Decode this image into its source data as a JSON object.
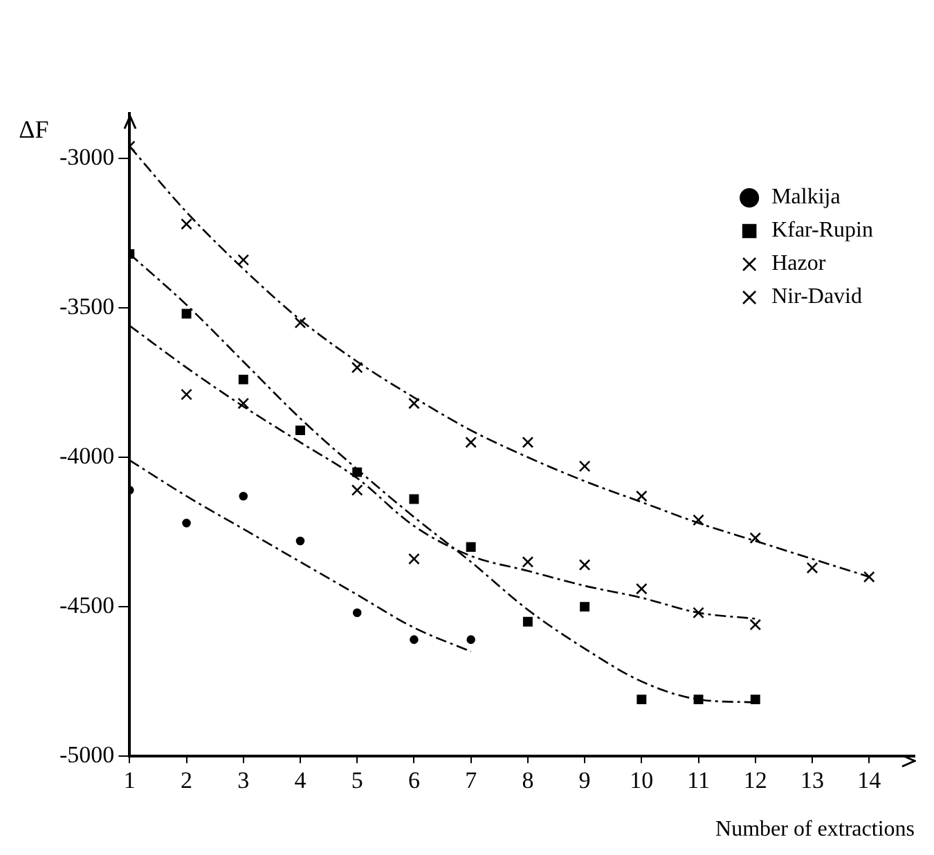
{
  "chart_data": {
    "type": "scatter",
    "ylabel": "ΔF",
    "xlabel": "Number of extractions",
    "xlim": [
      1,
      14.8
    ],
    "xticks": [
      1,
      2,
      3,
      4,
      5,
      6,
      7,
      8,
      9,
      10,
      11,
      12,
      13,
      14
    ],
    "ylim": [
      -5000,
      -2850
    ],
    "yticks": [
      -5000,
      -4500,
      -4000,
      -3500,
      -3000
    ],
    "legend": "top right",
    "series": [
      {
        "name": "Malkija",
        "type": "scatter",
        "marker": "circle",
        "color": "#000000",
        "x": [
          1,
          2,
          3,
          4,
          5,
          6,
          7
        ],
        "values": [
          -4110,
          -4220,
          -4130,
          -4280,
          -4520,
          -4610,
          -4610
        ]
      },
      {
        "name": "Kfar-Rupin",
        "type": "scatter",
        "marker": "square",
        "color": "#000000",
        "x": [
          1,
          2,
          3,
          4,
          5,
          6,
          7,
          8,
          9,
          10,
          11,
          12
        ],
        "values": [
          -3320,
          -3520,
          -3740,
          -3910,
          -4050,
          -4140,
          -4300,
          -4550,
          -4500,
          -4810,
          -4810,
          -4810
        ]
      },
      {
        "name": "Hazor",
        "type": "scatter",
        "marker": "cross",
        "color": "#000000",
        "x": [
          2,
          3,
          5,
          6,
          8,
          9,
          10,
          11,
          12
        ],
        "values": [
          -3790,
          -3820,
          -4110,
          -4340,
          -4350,
          -4360,
          -4440,
          -4520,
          -4560
        ]
      },
      {
        "name": "Nir-David",
        "type": "scatter",
        "marker": "cross",
        "color": "#000000",
        "x": [
          1,
          2,
          3,
          4,
          5,
          6,
          7,
          8,
          9,
          10,
          11,
          12,
          13,
          14
        ],
        "values": [
          -2960,
          -3220,
          -3340,
          -3550,
          -3700,
          -3820,
          -3950,
          -3950,
          -4030,
          -4130,
          -4210,
          -4270,
          -4370,
          -4400
        ]
      },
      {
        "type": "line",
        "marker": "none",
        "line_style": "dashed",
        "color": "#000000",
        "x": [
          1,
          2,
          3,
          4,
          5,
          6,
          7
        ],
        "values": [
          -4010,
          -4130,
          -4240,
          -4350,
          -4460,
          -4570,
          -4650
        ]
      },
      {
        "type": "line",
        "marker": "none",
        "line_style": "dashed",
        "color": "#000000",
        "x": [
          1,
          2,
          3,
          4,
          5,
          6,
          7,
          8,
          9,
          10,
          11,
          12
        ],
        "values": [
          -3320,
          -3490,
          -3680,
          -3870,
          -4040,
          -4200,
          -4350,
          -4510,
          -4640,
          -4750,
          -4810,
          -4820
        ]
      },
      {
        "type": "line",
        "marker": "none",
        "line_style": "dashed",
        "color": "#000000",
        "x": [
          1,
          2,
          3,
          4,
          5,
          6,
          7,
          8,
          9,
          10,
          11,
          12
        ],
        "values": [
          -3560,
          -3700,
          -3830,
          -3950,
          -4070,
          -4230,
          -4330,
          -4380,
          -4430,
          -4470,
          -4520,
          -4540
        ]
      },
      {
        "type": "line",
        "marker": "none",
        "line_style": "dashed",
        "color": "#000000",
        "x": [
          1,
          2,
          3,
          4,
          5,
          6,
          7,
          8,
          9,
          10,
          11,
          12,
          13,
          14
        ],
        "values": [
          -2960,
          -3180,
          -3370,
          -3540,
          -3680,
          -3800,
          -3910,
          -4000,
          -4080,
          -4150,
          -4220,
          -4280,
          -4340,
          -4400
        ]
      }
    ]
  }
}
